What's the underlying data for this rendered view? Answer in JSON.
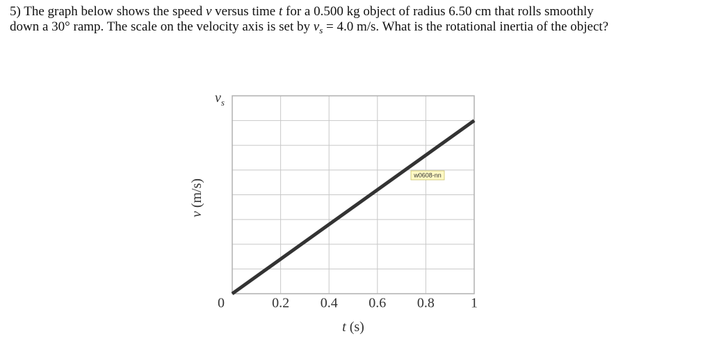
{
  "question": {
    "lines": [
      [
        {
          "text": "5) The graph below shows the speed "
        },
        {
          "text": "v",
          "style": "italic"
        },
        {
          "text": " versus time "
        },
        {
          "text": "t",
          "style": "italic"
        },
        {
          "text": " for a 0.500 kg object of radius 6.50 cm that rolls smoothly"
        }
      ],
      [
        {
          "text": "down a 30° ramp. The scale on the velocity axis is set by "
        },
        {
          "text": "v",
          "style": "italic"
        },
        {
          "text": "s",
          "style": "subscript"
        },
        {
          "text": " = 4.0 m/s. What is the rotational inertia of the object?"
        }
      ]
    ]
  },
  "chart_data": {
    "type": "line",
    "xlabel": [
      {
        "text": "t",
        "style": "italic"
      },
      {
        "text": " (s)"
      }
    ],
    "ylabel": [
      {
        "text": "v",
        "style": "italic"
      },
      {
        "text": " (m/s)"
      }
    ],
    "annotation": "w0608-nn",
    "x": [
      0,
      1
    ],
    "values": [
      0,
      3.5
    ],
    "color": "#333333",
    "xlim": [
      0,
      1
    ],
    "ylim": [
      0,
      4
    ],
    "xticks": [
      0,
      0.2,
      0.4,
      0.6,
      0.8,
      1
    ],
    "yticks": [
      {
        "value": 0,
        "label": null
      },
      {
        "value": 0.5,
        "label": null
      },
      {
        "value": 1,
        "label": null
      },
      {
        "value": 1.5,
        "label": null
      },
      {
        "value": 2,
        "label": null
      },
      {
        "value": 2.5,
        "label": null
      },
      {
        "value": 3,
        "label": null
      },
      {
        "value": 3.5,
        "label": null
      },
      {
        "value": 4,
        "label": "v",
        "label_subscript": "s"
      }
    ],
    "grid": true
  }
}
